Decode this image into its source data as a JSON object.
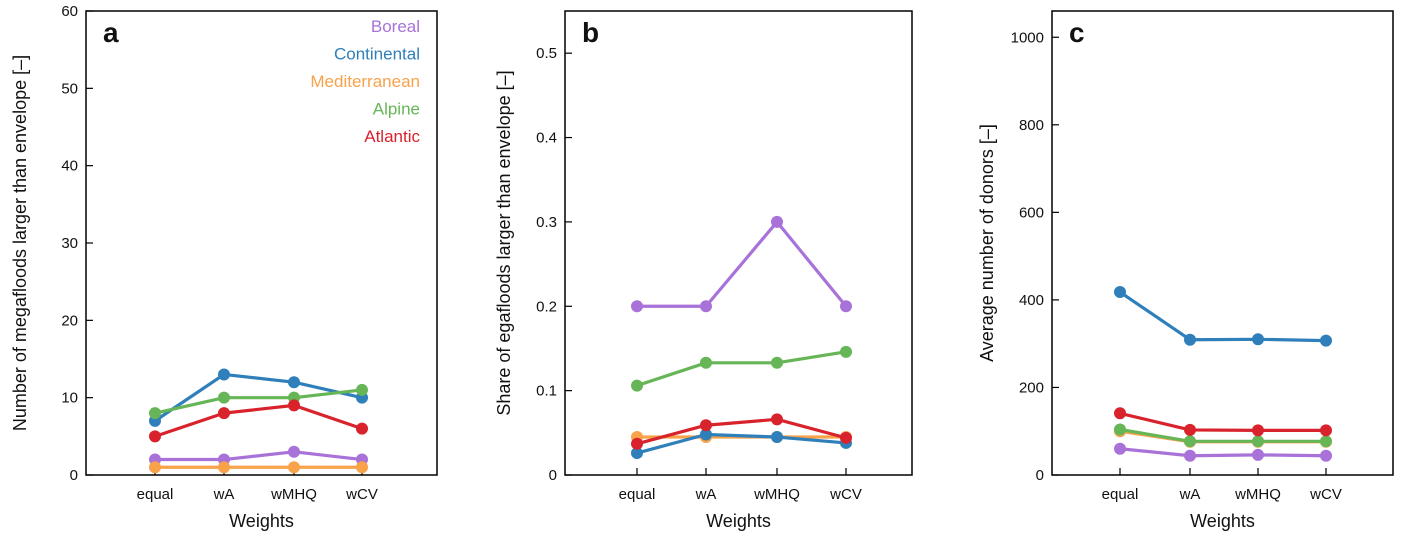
{
  "chart_data": [
    {
      "panel_label": "a",
      "type": "line",
      "categories": [
        "equal",
        "wA",
        "wMHQ",
        "wCV"
      ],
      "xlabel": "Weights",
      "ylabel": "Number of megafloods larger than envelope [–]",
      "ylim": [
        0,
        60
      ],
      "yticks": [
        0,
        10,
        20,
        30,
        40,
        50,
        60
      ],
      "legend": "top-right",
      "series": [
        {
          "name": "Boreal",
          "color": "#a872d8",
          "values": [
            2,
            2,
            3,
            2
          ]
        },
        {
          "name": "Continental",
          "color": "#2f7fba",
          "values": [
            7,
            13,
            12,
            10
          ]
        },
        {
          "name": "Mediterranean",
          "color": "#f8a24a",
          "values": [
            1,
            1,
            1,
            1
          ]
        },
        {
          "name": "Alpine",
          "color": "#66b657",
          "values": [
            8,
            10,
            10,
            11
          ]
        },
        {
          "name": "Atlantic",
          "color": "#d9232c",
          "values": [
            5,
            8,
            9,
            6
          ]
        }
      ]
    },
    {
      "panel_label": "b",
      "type": "line",
      "categories": [
        "equal",
        "wA",
        "wMHQ",
        "wCV"
      ],
      "xlabel": "Weights",
      "ylabel": "Share of egafloods larger than envelope [–]",
      "ylim": [
        0,
        0.55
      ],
      "yticks": [
        0,
        0.1,
        0.2,
        0.3,
        0.4,
        0.5
      ],
      "series": [
        {
          "color": "#a872d8",
          "values": [
            0.2,
            0.2,
            0.3,
            0.2
          ]
        },
        {
          "color": "#f8a24a",
          "values": [
            0.045,
            0.045,
            0.045,
            0.045
          ]
        },
        {
          "color": "#2f7fba",
          "values": [
            0.026,
            0.048,
            0.045,
            0.038
          ]
        },
        {
          "color": "#66b657",
          "values": [
            0.106,
            0.133,
            0.133,
            0.146
          ]
        },
        {
          "color": "#d9232c",
          "values": [
            0.037,
            0.059,
            0.066,
            0.044
          ]
        }
      ]
    },
    {
      "panel_label": "c",
      "type": "line",
      "categories": [
        "equal",
        "wA",
        "wMHQ",
        "wCV"
      ],
      "xlabel": "Weights",
      "ylabel": "Average number of donors [–]",
      "ylim": [
        0,
        1060
      ],
      "yticks": [
        0,
        200,
        400,
        600,
        800,
        1000
      ],
      "series": [
        {
          "color": "#2f7fba",
          "values": [
            418,
            309,
            310,
            307
          ]
        },
        {
          "color": "#a872d8",
          "values": [
            60,
            44,
            46,
            44
          ]
        },
        {
          "color": "#f8a24a",
          "values": [
            100,
            76,
            76,
            76
          ]
        },
        {
          "color": "#66b657",
          "values": [
            104,
            77,
            77,
            77
          ]
        },
        {
          "color": "#d9232c",
          "values": [
            141,
            103,
            102,
            102
          ]
        }
      ]
    }
  ]
}
